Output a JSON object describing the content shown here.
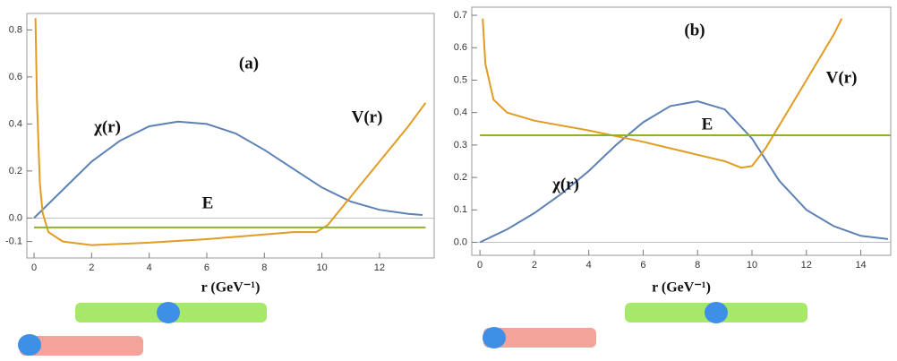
{
  "chart_data": [
    {
      "type": "line",
      "annotations": [
        "(a)",
        "χ(r)",
        "V(r)",
        "E"
      ],
      "x_label": "r (GeV⁻¹)",
      "xlim": [
        -0.25,
        13.9
      ],
      "ylim": [
        -0.17,
        0.87
      ],
      "xticks": [
        0,
        2,
        4,
        6,
        8,
        10,
        12
      ],
      "yticks": [
        -0.1,
        {
          "value": 0,
          "label": "0.0"
        },
        0.2,
        0.4,
        0.6,
        0.8
      ],
      "series": [
        {
          "name": "χ(r)",
          "color": "#5e81b5",
          "x": [
            0,
            1,
            2,
            3,
            4,
            5,
            6,
            7,
            8,
            9,
            10,
            11,
            12,
            13,
            13.5
          ],
          "values": [
            0,
            0.12,
            0.24,
            0.33,
            0.39,
            0.41,
            0.4,
            0.36,
            0.29,
            0.21,
            0.13,
            0.07,
            0.035,
            0.018,
            0.013
          ]
        },
        {
          "name": "V(r)",
          "color": "#e19c24",
          "x": [
            0.05,
            0.1,
            0.2,
            0.3,
            0.5,
            1,
            2,
            4,
            6,
            8,
            9,
            9.8,
            10.2,
            11,
            12,
            13,
            13.6
          ],
          "values": [
            0.85,
            0.5,
            0.15,
            0.02,
            -0.06,
            -0.1,
            -0.115,
            -0.105,
            -0.09,
            -0.07,
            -0.06,
            -0.06,
            -0.03,
            0.09,
            0.24,
            0.39,
            0.49
          ]
        },
        {
          "name": "E",
          "color": "#8fb032",
          "x": [
            0,
            13.6
          ],
          "values": [
            -0.04,
            -0.04
          ]
        }
      ]
    },
    {
      "type": "line",
      "annotations": [
        "(b)",
        "χ(r)",
        "V(r)",
        "E"
      ],
      "x_label": "r (GeV⁻¹)",
      "xlim": [
        -0.3,
        15.1
      ],
      "ylim": [
        -0.04,
        0.725
      ],
      "xticks": [
        0,
        2,
        4,
        6,
        8,
        10,
        12,
        14
      ],
      "yticks": [
        {
          "value": 0,
          "label": "0.0"
        },
        0.1,
        0.2,
        0.3,
        0.4,
        0.5,
        0.6,
        0.7
      ],
      "series": [
        {
          "name": "χ(r)",
          "color": "#5e81b5",
          "x": [
            0,
            1,
            2,
            3,
            4,
            5,
            6,
            7,
            8,
            9,
            10,
            11,
            12,
            13,
            14,
            15
          ],
          "values": [
            0,
            0.04,
            0.09,
            0.15,
            0.22,
            0.3,
            0.37,
            0.42,
            0.435,
            0.41,
            0.32,
            0.19,
            0.1,
            0.05,
            0.02,
            0.01
          ]
        },
        {
          "name": "V(r)",
          "color": "#e19c24",
          "x": [
            0.1,
            0.2,
            0.5,
            1,
            2,
            4,
            6,
            8,
            9,
            9.6,
            10,
            10.5,
            11,
            12,
            13,
            13.3
          ],
          "values": [
            0.69,
            0.55,
            0.44,
            0.4,
            0.375,
            0.345,
            0.31,
            0.27,
            0.25,
            0.23,
            0.235,
            0.29,
            0.36,
            0.5,
            0.64,
            0.69
          ]
        },
        {
          "name": "E",
          "color": "#8fb032",
          "x": [
            0,
            15.1
          ],
          "values": [
            0.33,
            0.33
          ]
        }
      ]
    }
  ]
}
